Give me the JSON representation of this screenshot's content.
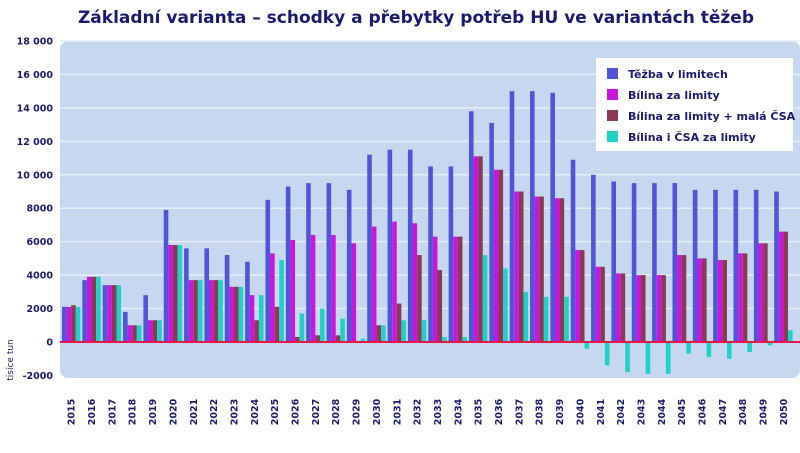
{
  "chart_data": {
    "type": "bar",
    "title": "Základní varianta – schodky a přebytky potřeb HU ve variantách těžeb",
    "xlabel": "",
    "ylabel": "tisíce tun",
    "ylim": [
      -2000,
      18000
    ],
    "yticks": [
      -2000,
      0,
      2000,
      4000,
      6000,
      8000,
      10000,
      12000,
      14000,
      16000,
      18000
    ],
    "ytick_labels": [
      "-2000",
      "0",
      "2000",
      "4000",
      "6000",
      "8000",
      "10 000",
      "12 000",
      "14 000",
      "16 000",
      "18 000"
    ],
    "grid": true,
    "legend_position": "top-right",
    "categories": [
      "2015",
      "2016",
      "2017",
      "2018",
      "2019",
      "2020",
      "2021",
      "2022",
      "2023",
      "2024",
      "2025",
      "2026",
      "2027",
      "2028",
      "2029",
      "2030",
      "2031",
      "2032",
      "2033",
      "2034",
      "2035",
      "2036",
      "2037",
      "2038",
      "2039",
      "2040",
      "2041",
      "2042",
      "2043",
      "2044",
      "2045",
      "2046",
      "2047",
      "2048",
      "2049",
      "2050"
    ],
    "series": [
      {
        "name": "Těžba v limitech",
        "color": "#4f55d6",
        "values": [
          2100,
          3700,
          3400,
          1800,
          2800,
          7900,
          5600,
          5600,
          5200,
          4800,
          8500,
          9300,
          9500,
          9500,
          9100,
          11200,
          11500,
          11500,
          10500,
          10500,
          13800,
          13100,
          15000,
          15000,
          14900,
          10900,
          10000,
          9600,
          9500,
          9500,
          9500,
          9100,
          9100,
          9100,
          9100,
          9000
        ]
      },
      {
        "name": "Bílina za limity",
        "color": "#c816dc",
        "values": [
          2100,
          3900,
          3400,
          1000,
          1300,
          5800,
          3700,
          3700,
          3300,
          2800,
          5300,
          6100,
          6400,
          6400,
          5900,
          6900,
          7200,
          7100,
          6300,
          6300,
          11100,
          10300,
          9000,
          8700,
          8600,
          5500,
          4500,
          4100,
          4000,
          4000,
          5200,
          5000,
          4900,
          5300,
          5900,
          6600
        ]
      },
      {
        "name": "Bílina za limity + malá ČSA",
        "color": "#8b3a55",
        "values": [
          2200,
          3900,
          3400,
          1000,
          1300,
          5800,
          3700,
          3700,
          3300,
          1300,
          2100,
          300,
          400,
          400,
          0,
          1000,
          2300,
          5200,
          4300,
          6300,
          11100,
          10300,
          9000,
          8700,
          8600,
          5500,
          4500,
          4100,
          4000,
          4000,
          5200,
          5000,
          4900,
          5300,
          5900,
          6600
        ]
      },
      {
        "name": "Bílina i ČSA za limity",
        "color": "#1fd1c6",
        "values": [
          2100,
          3900,
          3400,
          1000,
          1300,
          5800,
          3700,
          3700,
          3300,
          2800,
          4900,
          1700,
          2000,
          1400,
          200,
          1000,
          1300,
          1300,
          300,
          300,
          5200,
          4400,
          3000,
          2700,
          2700,
          -400,
          -1400,
          -1800,
          -1900,
          -1900,
          -700,
          -900,
          -1000,
          -600,
          -200,
          700
        ]
      }
    ],
    "zero_line_color": "#e8174b",
    "plot_background": "#c5d8f0"
  }
}
